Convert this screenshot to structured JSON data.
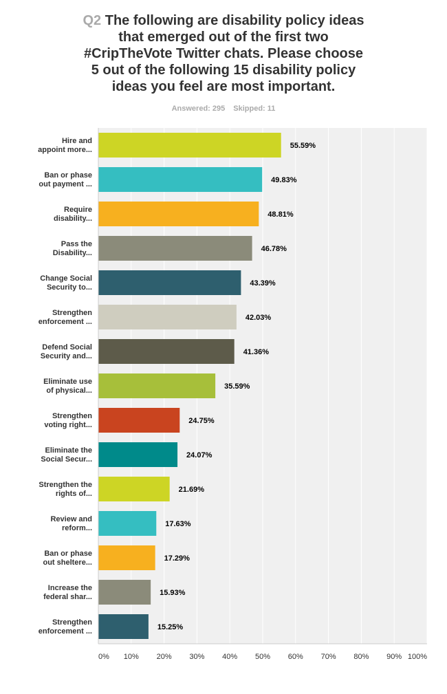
{
  "question": {
    "number": "Q2",
    "text_lines": [
      "The following are disability policy ideas",
      "that emerged out of the first two",
      "#CripTheVote Twitter chats. Please choose",
      "5 out of the following 15 disability policy",
      "ideas you feel are most important."
    ]
  },
  "stats": {
    "answered": "Answered: 295",
    "skipped": "Skipped: 11"
  },
  "colors": {
    "background": "#f0f0f0",
    "grid": "#ffffff",
    "axis": "#cccccc"
  },
  "chart_data": {
    "type": "bar",
    "orientation": "horizontal",
    "categories": [
      [
        "Hire and",
        "appoint more..."
      ],
      [
        "Ban or phase",
        "out payment ..."
      ],
      [
        "Require",
        "disability..."
      ],
      [
        "Pass the",
        "Disability..."
      ],
      [
        "Change Social",
        "Security to..."
      ],
      [
        "Strengthen",
        "enforcement ..."
      ],
      [
        "Defend Social",
        "Security and..."
      ],
      [
        "Eliminate use",
        "of physical..."
      ],
      [
        "Strengthen",
        "voting right..."
      ],
      [
        "Eliminate the",
        "Social Secur..."
      ],
      [
        "Strengthen the",
        "rights of..."
      ],
      [
        "Review and",
        "reform..."
      ],
      [
        "Ban or phase",
        "out sheltere..."
      ],
      [
        "Increase the",
        "federal shar..."
      ],
      [
        "Strengthen",
        "enforcement ..."
      ]
    ],
    "values": [
      55.59,
      49.83,
      48.81,
      46.78,
      43.39,
      42.03,
      41.36,
      35.59,
      24.75,
      24.07,
      21.69,
      17.63,
      17.29,
      15.93,
      15.25
    ],
    "value_labels": [
      "55.59%",
      "49.83%",
      "48.81%",
      "46.78%",
      "43.39%",
      "42.03%",
      "41.36%",
      "35.59%",
      "24.75%",
      "24.07%",
      "21.69%",
      "17.63%",
      "17.29%",
      "15.93%",
      "15.25%"
    ],
    "bar_colors": [
      "#cdd525",
      "#35bec1",
      "#f7b01f",
      "#8b8b7a",
      "#2e5f6e",
      "#cfcdbf",
      "#5d5b4a",
      "#a7bf3a",
      "#c9441f",
      "#008a8a",
      "#cdd525",
      "#35bec1",
      "#f7b01f",
      "#8b8b7a",
      "#2e5f6e"
    ],
    "x_ticks": [
      "0%",
      "10%",
      "20%",
      "30%",
      "40%",
      "50%",
      "60%",
      "70%",
      "80%",
      "90%",
      "100%"
    ],
    "xlim": [
      0,
      100
    ],
    "grid": true,
    "legend": "none"
  }
}
